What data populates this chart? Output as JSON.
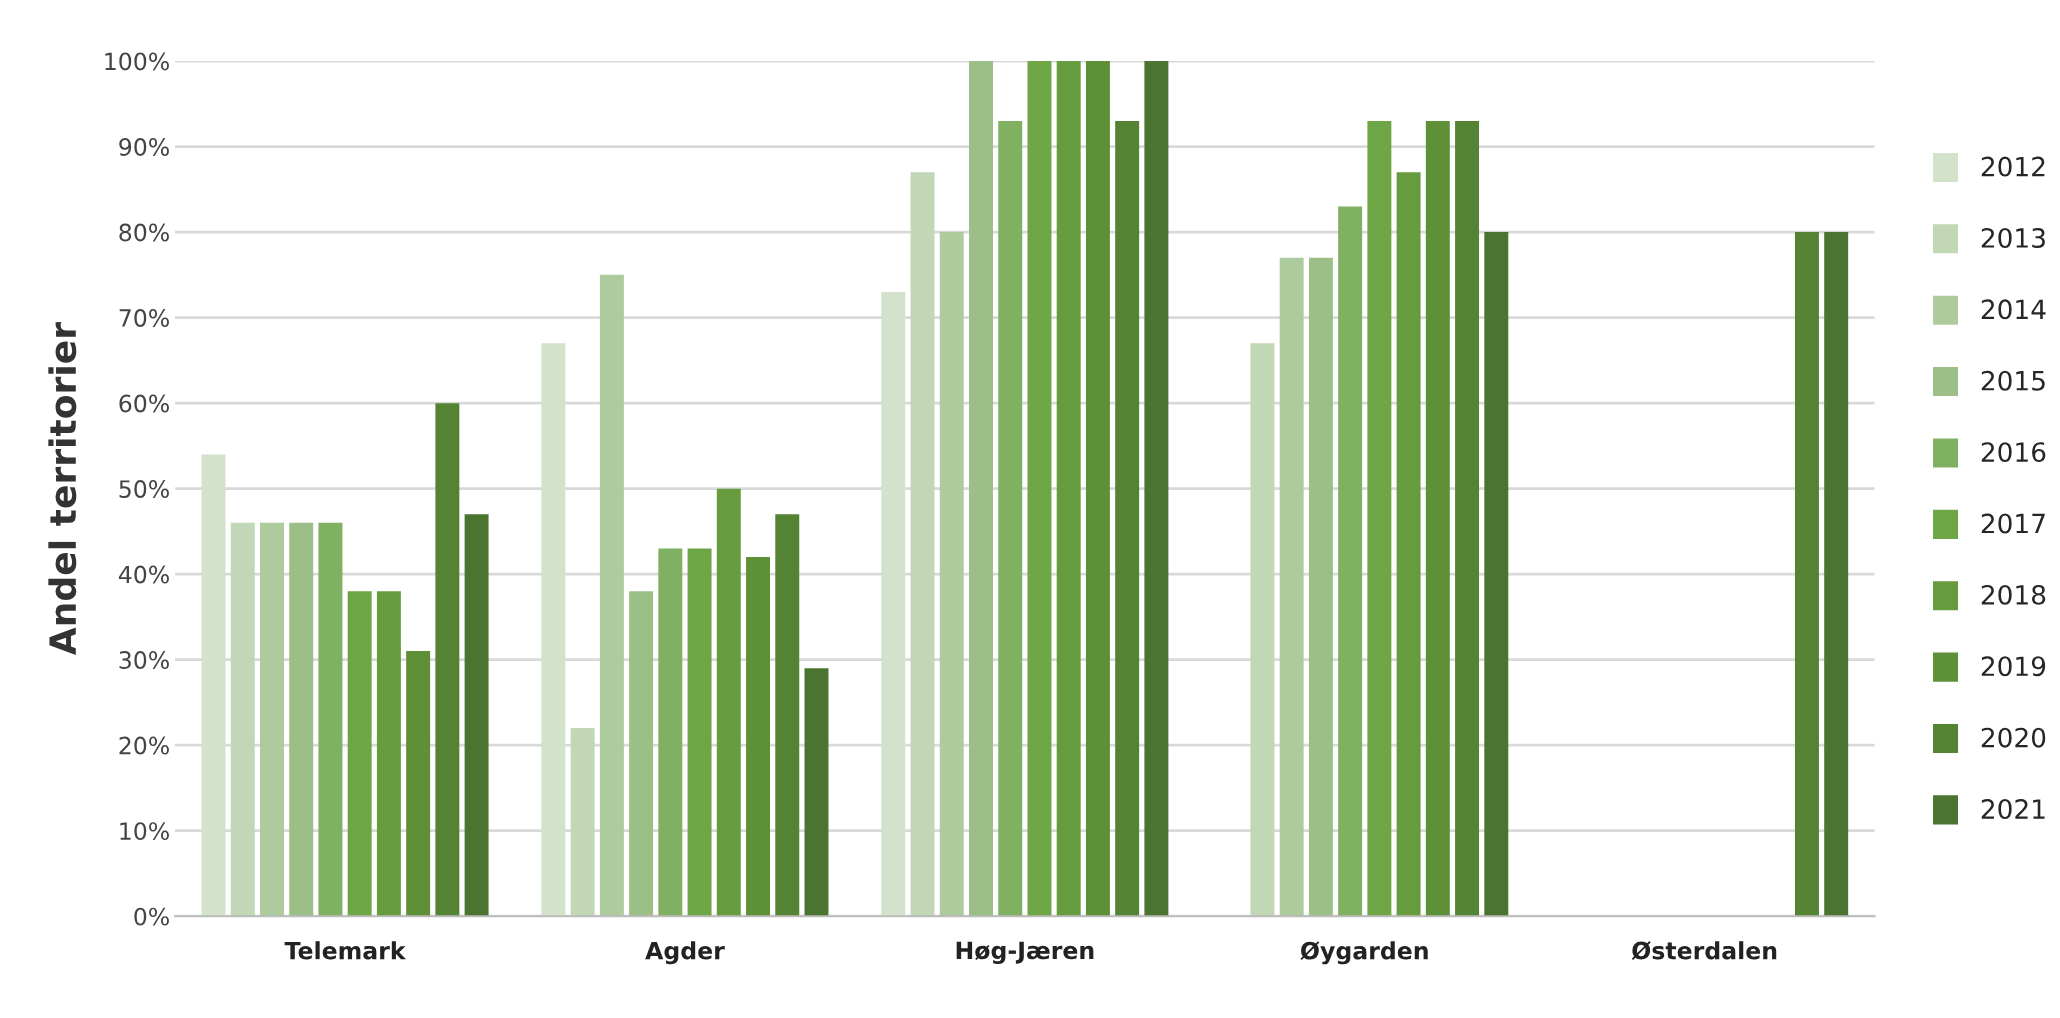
{
  "chart_data": {
    "type": "bar",
    "ylabel": "Andel territorier",
    "categories": [
      "Telemark",
      "Agder",
      "Høg-Jæren",
      "Øygarden",
      "Østerdalen"
    ],
    "series": [
      {
        "name": "2012",
        "color": "#d2e2cb",
        "values": [
          54,
          67,
          73,
          null,
          null
        ]
      },
      {
        "name": "2013",
        "color": "#c1d7b5",
        "values": [
          46,
          22,
          87,
          67,
          null
        ]
      },
      {
        "name": "2014",
        "color": "#aecb9e",
        "values": [
          46,
          75,
          80,
          77,
          null
        ]
      },
      {
        "name": "2015",
        "color": "#9bbf86",
        "values": [
          46,
          38,
          100,
          77,
          null
        ]
      },
      {
        "name": "2016",
        "color": "#80b061",
        "values": [
          46,
          43,
          93,
          83,
          null
        ]
      },
      {
        "name": "2017",
        "color": "#6ea645",
        "values": [
          38,
          43,
          100,
          93,
          null
        ]
      },
      {
        "name": "2018",
        "color": "#669b3e",
        "values": [
          38,
          50,
          100,
          87,
          null
        ]
      },
      {
        "name": "2019",
        "color": "#5e9038",
        "values": [
          31,
          42,
          100,
          93,
          null
        ]
      },
      {
        "name": "2020",
        "color": "#548333",
        "values": [
          60,
          47,
          93,
          93,
          80
        ]
      },
      {
        "name": "2021",
        "color": "#4a742f",
        "values": [
          47,
          29,
          100,
          80,
          80
        ]
      }
    ],
    "ylim": [
      0,
      100
    ],
    "yticks": [
      {
        "value": 0,
        "label": "0%"
      },
      {
        "value": 10,
        "label": "10%"
      },
      {
        "value": 20,
        "label": "20%"
      },
      {
        "value": 30,
        "label": "30%"
      },
      {
        "value": 40,
        "label": "40%"
      },
      {
        "value": 50,
        "label": "50%"
      },
      {
        "value": 60,
        "label": "60%"
      },
      {
        "value": 70,
        "label": "70%"
      },
      {
        "value": 80,
        "label": "80%"
      },
      {
        "value": 90,
        "label": "90%"
      },
      {
        "value": 100,
        "label": "100%"
      }
    ],
    "grid": "y",
    "legend": "right"
  }
}
